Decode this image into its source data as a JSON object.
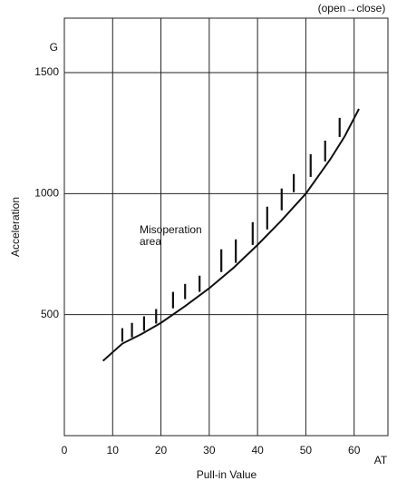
{
  "chart_data": {
    "type": "line",
    "annotation_top": "(open→close)",
    "y_unit": "G",
    "x_unit": "AT",
    "ylabel": "Acceleration",
    "xlabel": "Pull-in Value",
    "annotation": [
      "Misoperation",
      "area"
    ],
    "xlim": [
      0,
      67
    ],
    "ylim": [
      0,
      1725
    ],
    "xticks": [
      0,
      10,
      20,
      30,
      40,
      50,
      60
    ],
    "yticks": [
      500,
      1000,
      1500
    ],
    "grid": true,
    "color": "#111111",
    "series": [
      {
        "x": [
          8,
          12,
          16,
          20,
          25,
          30,
          35,
          40,
          45,
          50,
          55,
          58,
          61
        ],
        "values": [
          309,
          380,
          420,
          466,
          535,
          609,
          693,
          788,
          890,
          1000,
          1140,
          1235,
          1350
        ]
      }
    ],
    "ranges": {
      "x": [
        12,
        14,
        16.5,
        19,
        22.5,
        25,
        28,
        32.5,
        35.5,
        39,
        42,
        45,
        47.5,
        51,
        54,
        57
      ],
      "low": [
        388,
        406,
        433,
        463,
        526,
        564,
        594,
        676,
        714,
        788,
        852,
        931,
        1006,
        1069,
        1133,
        1234
      ],
      "high": [
        444,
        466,
        493,
        523,
        594,
        627,
        661,
        770,
        811,
        882,
        946,
        1021,
        1081,
        1163,
        1219,
        1313
      ]
    }
  }
}
